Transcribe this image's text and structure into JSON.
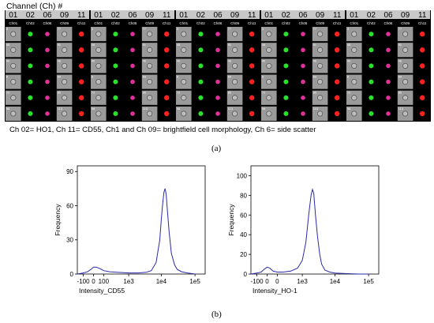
{
  "figure": {
    "channel_title": "Channel (Ch) #",
    "panel_headers": [
      "01",
      "02",
      "06",
      "09",
      "11"
    ],
    "tile_labels": [
      "Ch01",
      "Ch02",
      "Ch06",
      "Ch09",
      "Ch11"
    ],
    "row_numbers": [
      [
        "3",
        "4",
        "66",
        "77",
        "8"
      ],
      [
        "48",
        "51",
        "81",
        "91",
        "9"
      ],
      [
        "40",
        "45",
        "41",
        "46",
        "40"
      ],
      [
        "8",
        "7",
        "81",
        "84",
        "8"
      ],
      [
        "72",
        "73",
        "83",
        "85",
        "78"
      ],
      [
        "98",
        "99",
        "111",
        "113",
        "115"
      ]
    ],
    "caption_line": "Ch 02= HO1, Ch 11= CD55, Ch1 and Ch 09= brightfield cell morphology, Ch 6= side scatter",
    "label_a": "(a)",
    "label_b": "(b)"
  },
  "colors": {
    "gallery_bg": "#000000",
    "header_bg": "#c8c8c8",
    "brightfield": "#9a9a9a",
    "ho1_green": "#2ee02e",
    "side_scatter_magenta": "#e0309a",
    "cd55_red": "#ff2020",
    "histogram_line": "#2a2aa8"
  },
  "chart_data": [
    {
      "type": "line",
      "title": "",
      "xlabel": "Intensity_CD55",
      "ylabel": "Frequency",
      "x_ticks": [
        "-100",
        "0",
        "100",
        "1e3",
        "1e4",
        "1e5"
      ],
      "y_ticks": [
        0,
        30,
        60,
        90
      ],
      "ylim": [
        0,
        95
      ],
      "xscale": "logicle",
      "series": [
        {
          "x": [
            -200,
            -100,
            -50,
            -20,
            0,
            20,
            50,
            100,
            200,
            400,
            700,
            1000,
            2000,
            3500,
            5000,
            7000,
            9000,
            10000,
            11000,
            12000,
            13000,
            14000,
            15000,
            17000,
            20000,
            25000,
            30000,
            40000,
            60000,
            100000
          ],
          "y": [
            0,
            1,
            2,
            4,
            6,
            6,
            5,
            3,
            2,
            1.5,
            1.2,
            1,
            1,
            1.5,
            3,
            10,
            30,
            48,
            62,
            72,
            75,
            70,
            58,
            38,
            18,
            8,
            4,
            2,
            1,
            0
          ]
        }
      ]
    },
    {
      "type": "line",
      "title": "",
      "xlabel": "Intensity_HO-1",
      "ylabel": "Frequency",
      "x_ticks": [
        "-100",
        "0",
        "0",
        "1e3",
        "1e4",
        "1e5"
      ],
      "y_ticks": [
        0,
        20,
        40,
        60,
        80,
        100
      ],
      "ylim": [
        0,
        110
      ],
      "xscale": "logicle",
      "series": [
        {
          "x": [
            -200,
            -100,
            -50,
            -20,
            0,
            20,
            50,
            100,
            200,
            400,
            700,
            1000,
            1300,
            1600,
            1900,
            2100,
            2300,
            2600,
            3000,
            3500,
            4000,
            5000,
            7000,
            10000,
            20000,
            50000,
            100000
          ],
          "y": [
            0,
            1,
            2,
            5,
            7,
            6,
            3,
            2,
            2,
            3,
            6,
            14,
            32,
            60,
            80,
            86,
            82,
            60,
            38,
            20,
            10,
            4,
            2,
            1,
            0.5,
            0,
            0
          ]
        }
      ]
    }
  ]
}
